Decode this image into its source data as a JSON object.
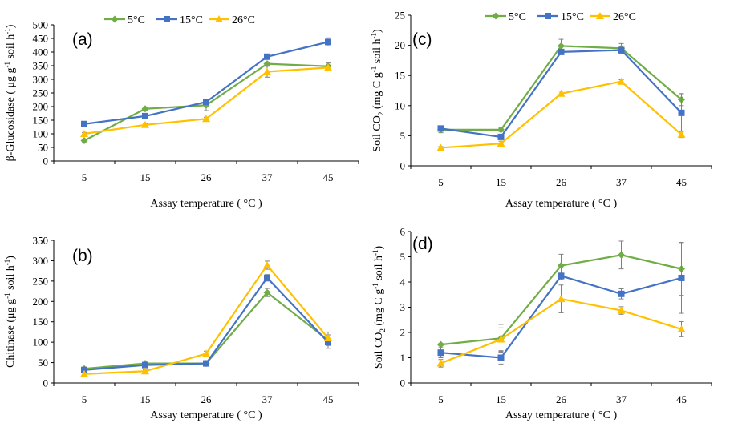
{
  "colors": {
    "5C": "#70AD47",
    "15C": "#4472C4",
    "26C": "#FFC000",
    "errorbar": "#808080",
    "axis": "#000000"
  },
  "chart_data": [
    {
      "type": "line",
      "panel_label": "(a)",
      "categories": [
        "5",
        "15",
        "26",
        "37",
        "45"
      ],
      "xlabel": "Assay temperature ( °C )",
      "ylabel_parts": [
        "β-Glucosidase ( μg g",
        "-1",
        " soil h",
        "-1",
        ")"
      ],
      "ylim": [
        0,
        500
      ],
      "ytick_step": 50,
      "legend": true,
      "grid": false,
      "series": [
        {
          "name": "5°C",
          "color_key": "5C",
          "marker": "diamond",
          "values": [
            75,
            192,
            205,
            357,
            348
          ],
          "errors": [
            5,
            6,
            20,
            6,
            12
          ]
        },
        {
          "name": "15°C",
          "color_key": "15C",
          "marker": "square",
          "values": [
            136,
            165,
            217,
            383,
            437
          ],
          "errors": [
            5,
            5,
            6,
            6,
            15
          ]
        },
        {
          "name": "26°C",
          "color_key": "26C",
          "marker": "triangle",
          "values": [
            100,
            133,
            155,
            328,
            343
          ],
          "errors": [
            5,
            5,
            6,
            20,
            8
          ]
        }
      ]
    },
    {
      "type": "line",
      "panel_label": "(c)",
      "categories": [
        "5",
        "15",
        "26",
        "37",
        "45"
      ],
      "xlabel": "Assay temperature ( °C )",
      "ylabel_parts": [
        "Soil CO",
        "2",
        " (mg C g",
        "-1",
        " soil h",
        "-1",
        ")"
      ],
      "ylim": [
        0,
        25
      ],
      "ytick_step": 5,
      "legend": true,
      "grid": false,
      "series": [
        {
          "name": "5°C",
          "color_key": "5C",
          "marker": "diamond",
          "values": [
            6.0,
            6.0,
            19.9,
            19.5,
            11.0
          ],
          "errors": [
            0.5,
            0.3,
            1.1,
            0.8,
            1.0
          ]
        },
        {
          "name": "15°C",
          "color_key": "15C",
          "marker": "square",
          "values": [
            6.2,
            4.8,
            18.9,
            19.2,
            8.8
          ],
          "errors": [
            0.3,
            0.3,
            0.3,
            0.5,
            3.0
          ]
        },
        {
          "name": "26°C",
          "color_key": "26C",
          "marker": "triangle",
          "values": [
            3.0,
            3.7,
            12.0,
            14.0,
            5.2
          ],
          "errors": [
            0.2,
            0.4,
            0.4,
            0.3,
            0.5
          ]
        }
      ]
    },
    {
      "type": "line",
      "panel_label": "(b)",
      "categories": [
        "5",
        "15",
        "26",
        "37",
        "45"
      ],
      "xlabel": "Assay temperature ( °C )",
      "ylabel_parts": [
        "Chitinase (μg g",
        "-1",
        " soil h",
        "-1",
        ")"
      ],
      "ylim": [
        0,
        350
      ],
      "ytick_step": 50,
      "legend": false,
      "grid": false,
      "series": [
        {
          "name": "5°C",
          "color_key": "5C",
          "marker": "diamond",
          "values": [
            35,
            48,
            48,
            222,
            105
          ],
          "errors": [
            4,
            3,
            3,
            10,
            20
          ]
        },
        {
          "name": "15°C",
          "color_key": "15C",
          "marker": "square",
          "values": [
            32,
            44,
            48,
            258,
            100
          ],
          "errors": [
            3,
            3,
            3,
            8,
            8
          ]
        },
        {
          "name": "26°C",
          "color_key": "26C",
          "marker": "triangle",
          "values": [
            22,
            29,
            72,
            289,
            110
          ],
          "errors": [
            3,
            3,
            6,
            10,
            8
          ]
        }
      ]
    },
    {
      "type": "line",
      "panel_label": "(d)",
      "categories": [
        "5",
        "15",
        "26",
        "37",
        "45"
      ],
      "xlabel": "Assay temperature ( °C )",
      "ylabel_parts": [
        "Soil CO",
        "2",
        " (mg C g",
        "-1",
        " soil h",
        "-1",
        ")"
      ],
      "ylim": [
        0,
        6
      ],
      "ytick_step": 1,
      "legend": false,
      "grid": false,
      "series": [
        {
          "name": "5°C",
          "color_key": "5C",
          "marker": "diamond",
          "values": [
            1.52,
            1.77,
            4.65,
            5.07,
            4.52
          ],
          "errors": [
            0.05,
            0.55,
            0.45,
            0.55,
            1.05
          ]
        },
        {
          "name": "15°C",
          "color_key": "15C",
          "marker": "square",
          "values": [
            1.2,
            1.0,
            4.24,
            3.53,
            4.16
          ],
          "errors": [
            0.2,
            0.25,
            0.15,
            0.2,
            1.4
          ]
        },
        {
          "name": "26°C",
          "color_key": "26C",
          "marker": "triangle",
          "values": [
            0.78,
            1.73,
            3.33,
            2.87,
            2.13
          ],
          "errors": [
            0.15,
            0.45,
            0.55,
            0.15,
            0.3
          ]
        }
      ]
    }
  ]
}
